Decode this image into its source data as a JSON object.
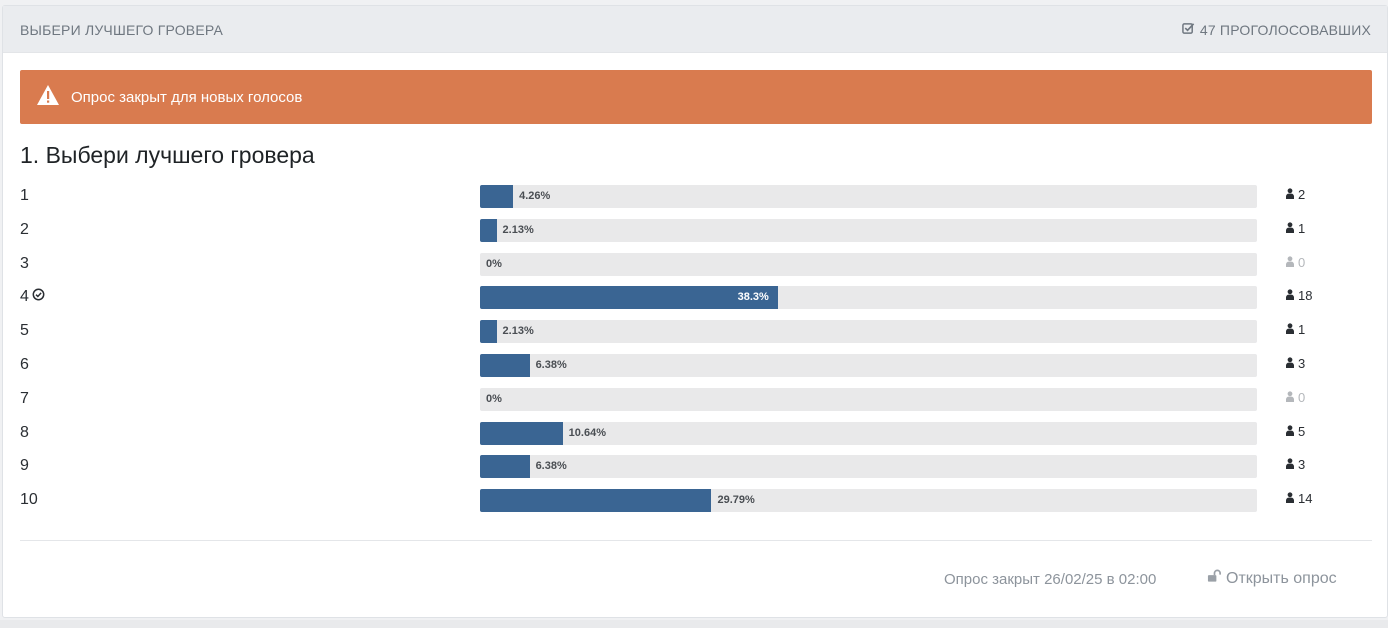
{
  "header": {
    "title": "Выбери лучшего гровера",
    "voters_label": "47 проголосовавших",
    "voters_icon": "check-square-icon"
  },
  "alert": {
    "text": "Опрос закрыт для новых голосов",
    "icon": "warning-icon",
    "color": "#d97b4f"
  },
  "question": {
    "title": "1. Выбери лучшего гровера"
  },
  "options": [
    {
      "label": "1",
      "percent": 4.26,
      "percent_label": "4.26%",
      "votes": "2",
      "selected": false
    },
    {
      "label": "2",
      "percent": 2.13,
      "percent_label": "2.13%",
      "votes": "1",
      "selected": false
    },
    {
      "label": "3",
      "percent": 0,
      "percent_label": "0%",
      "votes": "0",
      "selected": false
    },
    {
      "label": "4",
      "percent": 38.3,
      "percent_label": "38.3%",
      "votes": "18",
      "selected": true
    },
    {
      "label": "5",
      "percent": 2.13,
      "percent_label": "2.13%",
      "votes": "1",
      "selected": false
    },
    {
      "label": "6",
      "percent": 6.38,
      "percent_label": "6.38%",
      "votes": "3",
      "selected": false
    },
    {
      "label": "7",
      "percent": 0,
      "percent_label": "0%",
      "votes": "0",
      "selected": false
    },
    {
      "label": "8",
      "percent": 10.64,
      "percent_label": "10.64%",
      "votes": "5",
      "selected": false
    },
    {
      "label": "9",
      "percent": 6.38,
      "percent_label": "6.38%",
      "votes": "3",
      "selected": false
    },
    {
      "label": "10",
      "percent": 29.79,
      "percent_label": "29.79%",
      "votes": "14",
      "selected": false
    }
  ],
  "footer": {
    "closed_text": "Опрос закрыт 26/02/25 в 02:00",
    "open_label": "Открыть опрос",
    "open_icon": "unlock-icon"
  },
  "colors": {
    "bar_fill": "#3a6593",
    "bar_track": "#e9e9ea",
    "alert": "#d97b4f"
  }
}
